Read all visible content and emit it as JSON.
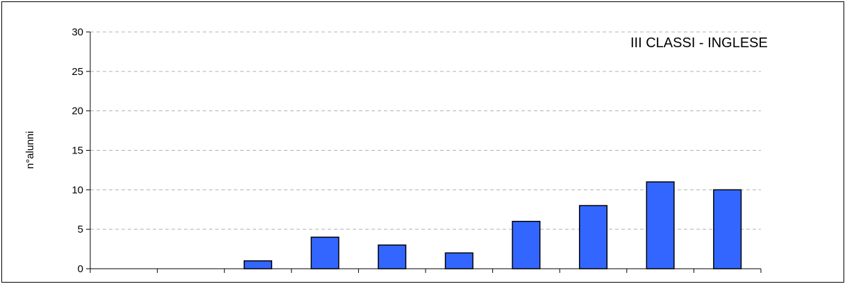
{
  "chart_data": {
    "type": "bar",
    "title": "III CLASSI - INGLESE",
    "ylabel": "n°alunni",
    "xlabel": "",
    "ylim": [
      0,
      30
    ],
    "yticks": [
      0,
      5,
      10,
      15,
      20,
      25,
      30
    ],
    "grid": true,
    "categories": [
      "",
      "",
      "",
      "",
      "",
      "",
      "",
      "",
      "",
      ""
    ],
    "values": [
      0,
      0,
      1,
      4,
      3,
      2,
      6,
      8,
      11,
      10
    ],
    "bar_color": "#3366ff"
  }
}
